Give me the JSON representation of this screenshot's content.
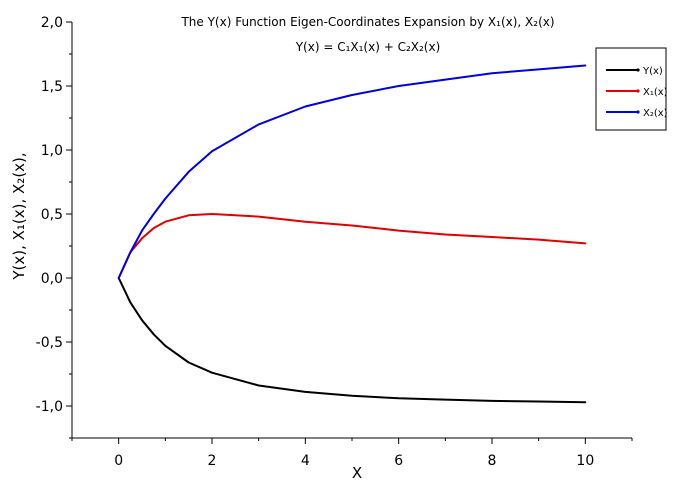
{
  "chart_data": {
    "type": "line",
    "title": "The Y(x) Function Eigen-Coordinates Expansion by X₁(x), X₂(x)",
    "subtitle": "Y(x) = C₁X₁(x) + C₂X₂(x)",
    "xlabel": "X",
    "ylabel": "Y(x), X₁(x), X₂(x),",
    "xlim": [
      -1,
      11
    ],
    "ylim": [
      -1.25,
      2.0
    ],
    "x_ticks": [
      0,
      2,
      4,
      6,
      8,
      10
    ],
    "x_tick_labels": [
      "0",
      "2",
      "4",
      "6",
      "8",
      "10"
    ],
    "y_ticks": [
      -1.0,
      -0.5,
      0.0,
      0.5,
      1.0,
      1.5,
      2.0
    ],
    "y_tick_labels": [
      "-1,0",
      "-0,5",
      "0,0",
      "0,5",
      "1,0",
      "1,5",
      "2,0"
    ],
    "grid": false,
    "legend_position": "top-right",
    "series": [
      {
        "name": "Y(x)",
        "color": "#000000",
        "x": [
          0,
          0.25,
          0.5,
          0.75,
          1,
          1.5,
          2,
          3,
          4,
          5,
          6,
          7,
          8,
          9,
          10
        ],
        "values": [
          0,
          -0.19,
          -0.33,
          -0.44,
          -0.53,
          -0.66,
          -0.74,
          -0.84,
          -0.89,
          -0.92,
          -0.94,
          -0.95,
          -0.96,
          -0.965,
          -0.97
        ]
      },
      {
        "name": "X₁(x)",
        "color": "#e00000",
        "x": [
          0,
          0.25,
          0.5,
          0.75,
          1,
          1.5,
          2,
          2.5,
          3,
          4,
          5,
          6,
          7,
          8,
          9,
          10
        ],
        "values": [
          0,
          0.2,
          0.31,
          0.39,
          0.44,
          0.49,
          0.5,
          0.49,
          0.48,
          0.44,
          0.41,
          0.37,
          0.34,
          0.32,
          0.3,
          0.27
        ]
      },
      {
        "name": "X₂(x)",
        "color": "#0000e0",
        "x": [
          0,
          0.25,
          0.5,
          0.75,
          1,
          1.5,
          2,
          3,
          4,
          5,
          6,
          7,
          8,
          9,
          10
        ],
        "values": [
          0,
          0.2,
          0.37,
          0.5,
          0.62,
          0.83,
          0.99,
          1.2,
          1.34,
          1.43,
          1.5,
          1.55,
          1.6,
          1.63,
          1.66
        ]
      }
    ]
  }
}
